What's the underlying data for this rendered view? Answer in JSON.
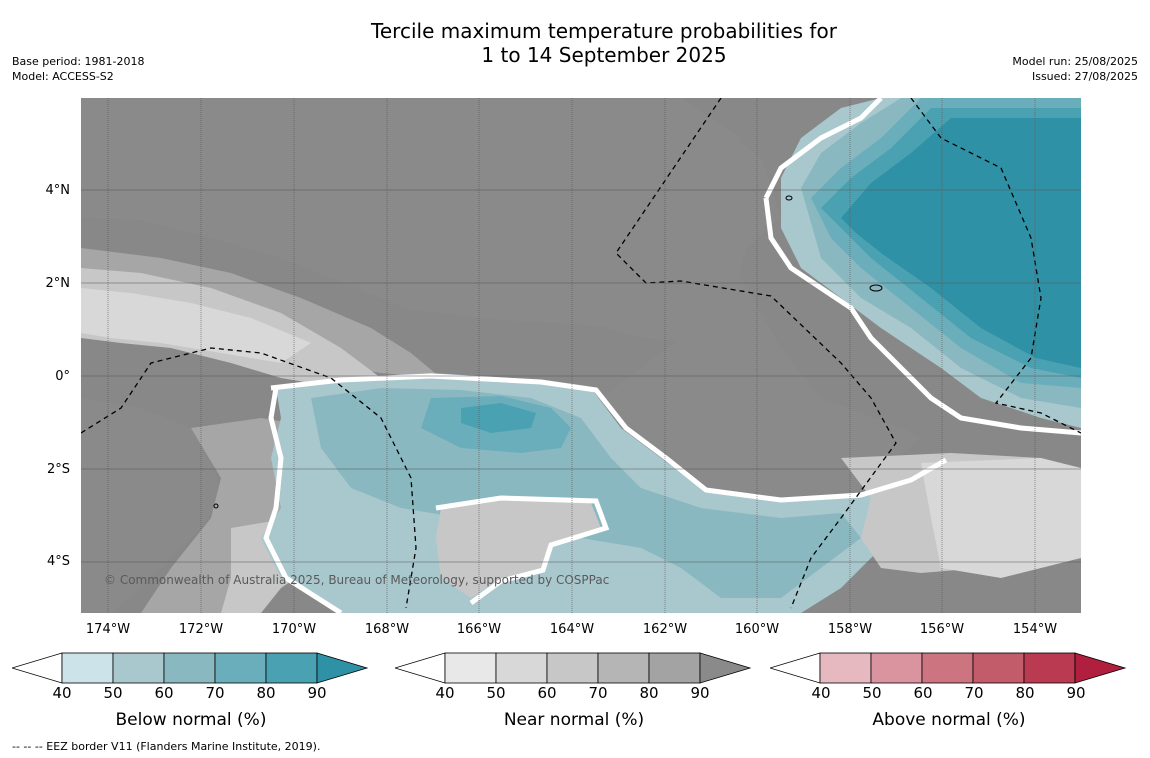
{
  "header": {
    "title_line1": "Tercile maximum temperature probabilities for",
    "title_line2": "1 to 14 September 2025",
    "base_period": "Base period: 1981-2018",
    "model": "Model: ACCESS-S2",
    "model_run": "Model run: 25/08/2025",
    "issued": "Issued: 27/08/2025"
  },
  "map": {
    "lat_labels": [
      "4°N",
      "2°N",
      "0°",
      "2°S",
      "4°S"
    ],
    "lon_labels": [
      "174°W",
      "172°W",
      "170°W",
      "168°W",
      "166°W",
      "164°W",
      "162°W",
      "160°W",
      "158°W",
      "156°W",
      "154°W"
    ],
    "copyright": "© Commonwealth of Australia 2025, Bureau of Meteorology, supported by COSPPac",
    "colors": {
      "near_90": "#8a8a8a",
      "near_80": "#a6a6a6",
      "near_70": "#b8b8b8",
      "near_60": "#c7c7c7",
      "near_50": "#d8d8d8",
      "below_50": "#a9c8ce",
      "below_60": "#8ab8c1",
      "below_70": "#6aaebb",
      "below_80": "#4aa1b1",
      "below_90": "#2e91a6"
    }
  },
  "colorbars": [
    {
      "title": "Below normal (%)",
      "ticks": [
        "40",
        "50",
        "60",
        "70",
        "80",
        "90"
      ],
      "colors": [
        "#ffffff",
        "#cbe3e9",
        "#a9c8ce",
        "#8ab8c1",
        "#6aaebb",
        "#4aa1b1",
        "#2e91a6"
      ]
    },
    {
      "title": "Near normal (%)",
      "ticks": [
        "40",
        "50",
        "60",
        "70",
        "80",
        "90"
      ],
      "colors": [
        "#ffffff",
        "#e8e8e8",
        "#d8d8d8",
        "#c7c7c7",
        "#b5b5b5",
        "#a3a3a3",
        "#8a8a8a"
      ]
    },
    {
      "title": "Above normal (%)",
      "ticks": [
        "40",
        "50",
        "60",
        "70",
        "80",
        "90"
      ],
      "colors": [
        "#ffffff",
        "#e6b9c0",
        "#d9949f",
        "#cc7580",
        "#c25c6a",
        "#ba3a52",
        "#b01f3d"
      ]
    }
  ],
  "footer": {
    "eez_note": "--  --  -- EEZ border V11 (Flanders Marine Institute, 2019)."
  }
}
